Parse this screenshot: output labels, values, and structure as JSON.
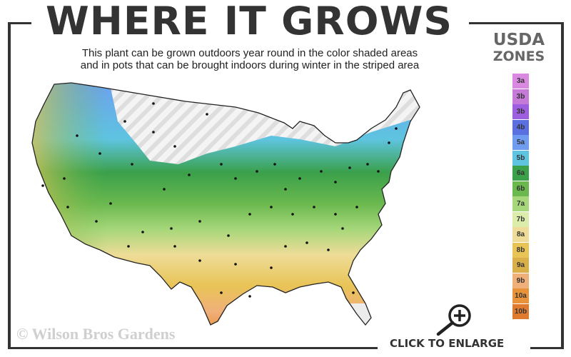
{
  "header": {
    "title": "WHERE IT GROWS",
    "subtitle_line1": "This plant can be grown outdoors year round in the color shaded areas",
    "subtitle_line2": "and in pots that can be brought indoors during winter in the striped area"
  },
  "legend": {
    "title_line1": "USDA",
    "title_line2": "ZONES",
    "zones": [
      {
        "label": "3a",
        "color": "#d98ae0"
      },
      {
        "label": "3b",
        "color": "#c47ad6"
      },
      {
        "label": "3b",
        "color": "#9d5fe0"
      },
      {
        "label": "4b",
        "color": "#5a6fe0"
      },
      {
        "label": "5a",
        "color": "#6f9cf0"
      },
      {
        "label": "5b",
        "color": "#5ec4e0"
      },
      {
        "label": "6a",
        "color": "#3aa04a"
      },
      {
        "label": "6b",
        "color": "#6ab84e"
      },
      {
        "label": "7a",
        "color": "#a6d77a"
      },
      {
        "label": "7b",
        "color": "#dcecaa"
      },
      {
        "label": "8a",
        "color": "#eedc98"
      },
      {
        "label": "8b",
        "color": "#e8c456"
      },
      {
        "label": "9a",
        "color": "#d9b048"
      },
      {
        "label": "9b",
        "color": "#f0b07a"
      },
      {
        "label": "10a",
        "color": "#e8923a"
      },
      {
        "label": "10b",
        "color": "#e07a2e"
      }
    ]
  },
  "map": {
    "striped_area": "pots-indoors-in-winter",
    "shaded_area": "grown-outdoors-year-round"
  },
  "watermark": "© Wilson Bros Gardens",
  "enlarge": {
    "label": "CLICK TO ENLARGE",
    "icon": "zoom-in-icon"
  }
}
